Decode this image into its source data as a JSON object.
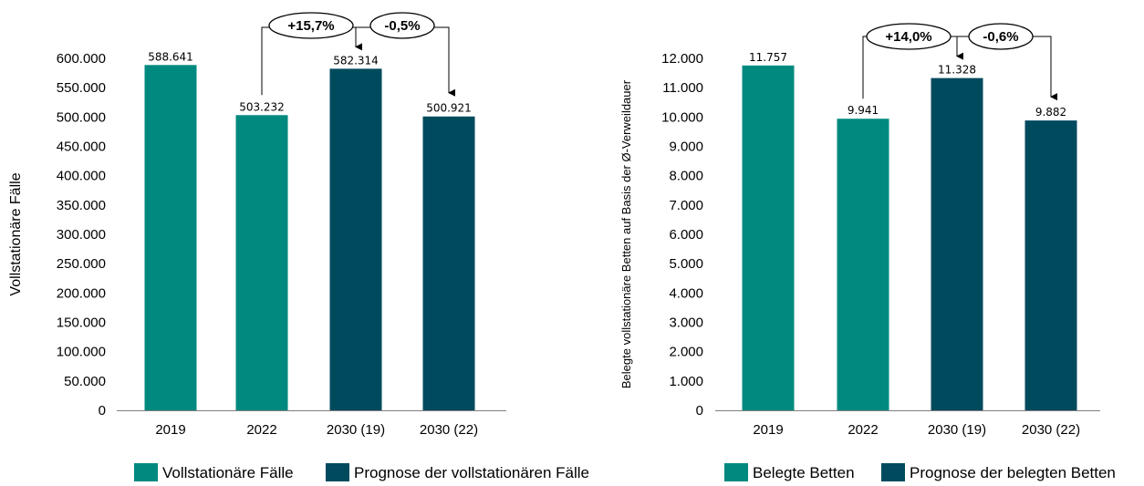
{
  "colors": {
    "actual": "#00897f",
    "forecast": "#004a5e"
  },
  "chart_data": [
    {
      "type": "bar",
      "categories": [
        "2019",
        "2022",
        "2030 (19)",
        "2030 (22)"
      ],
      "values": [
        588641,
        503232,
        582314,
        500921
      ],
      "value_labels": [
        "588.641",
        "503.232",
        "582.314",
        "500.921"
      ],
      "series_kind": [
        "actual",
        "actual",
        "forecast",
        "forecast"
      ],
      "ylim": [
        0,
        600000
      ],
      "ytick_values": [
        0,
        50000,
        100000,
        150000,
        200000,
        250000,
        300000,
        350000,
        400000,
        450000,
        500000,
        550000,
        600000
      ],
      "ytick_labels": [
        "0",
        "50.000",
        "100.000",
        "150.000",
        "200.000",
        "250.000",
        "300.000",
        "350.000",
        "400.000",
        "450.000",
        "500.000",
        "550.000",
        "600.000"
      ],
      "ylabel": "Vollstationäre Fälle",
      "annotations": [
        "+15,7%",
        "-0,5%"
      ],
      "legend": [
        "Vollstationäre Fälle",
        "Prognose der vollstationären Fälle"
      ],
      "legend_position": "bottom",
      "grid": false
    },
    {
      "type": "bar",
      "categories": [
        "2019",
        "2022",
        "2030 (19)",
        "2030 (22)"
      ],
      "values": [
        11757,
        9941,
        11328,
        9882
      ],
      "value_labels": [
        "11.757",
        "9.941",
        "11.328",
        "9.882"
      ],
      "series_kind": [
        "actual",
        "actual",
        "forecast",
        "forecast"
      ],
      "ylim": [
        0,
        12000
      ],
      "ytick_values": [
        0,
        1000,
        2000,
        3000,
        4000,
        5000,
        6000,
        7000,
        8000,
        9000,
        10000,
        11000,
        12000
      ],
      "ytick_labels": [
        "0",
        "1.000",
        "2.000",
        "3.000",
        "4.000",
        "5.000",
        "6.000",
        "7.000",
        "8.000",
        "9.000",
        "10.000",
        "11.000",
        "12.000"
      ],
      "ylabel": "Belegte vollstationäre Betten auf Basis der Ø-Verweildauer",
      "annotations": [
        "+14,0%",
        "-0,6%"
      ],
      "legend": [
        "Belegte Betten",
        "Prognose der belegten Betten"
      ],
      "legend_position": "bottom",
      "grid": false
    }
  ]
}
